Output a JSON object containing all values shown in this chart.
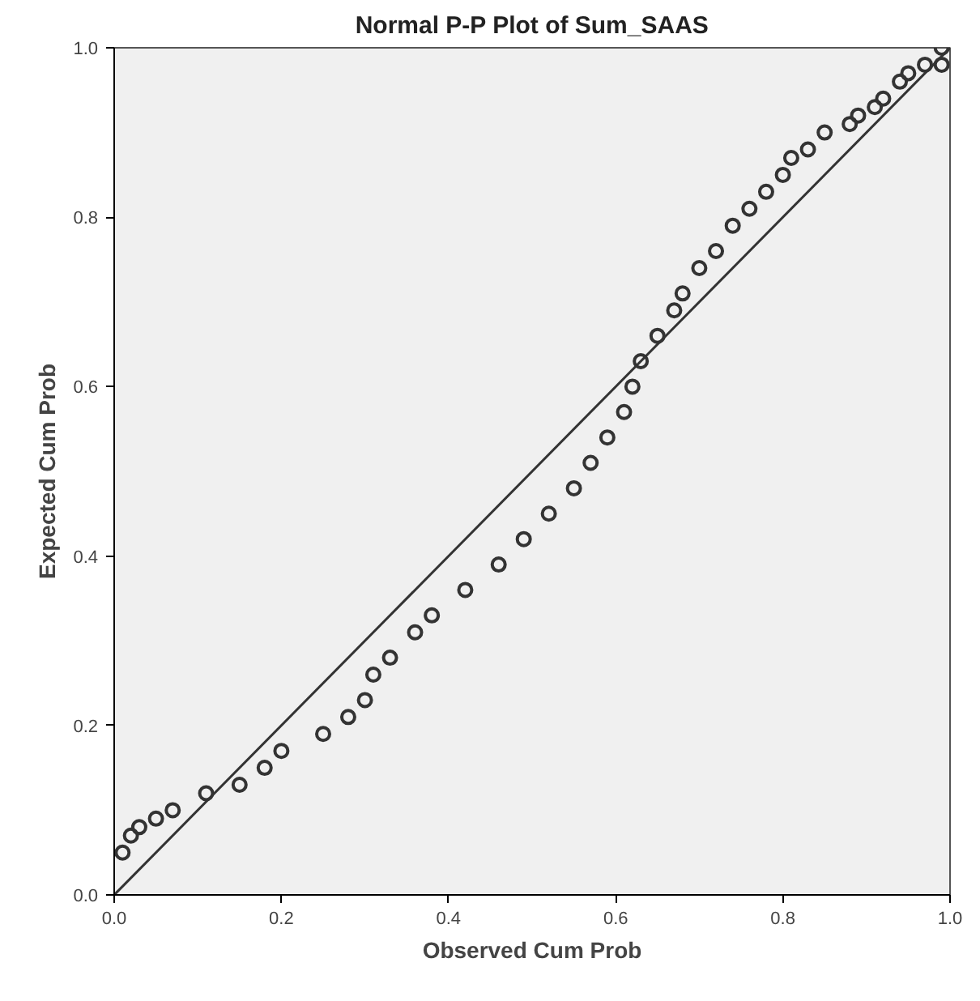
{
  "chart_data": {
    "type": "scatter",
    "title": "Normal P-P Plot of Sum_SAAS",
    "xlabel": "Observed Cum Prob",
    "ylabel": "Expected Cum Prob",
    "xlim": [
      0,
      1
    ],
    "ylim": [
      0,
      1
    ],
    "xticks": [
      {
        "value": 0,
        "label": "0.0"
      },
      {
        "value": 0.2,
        "label": "0.2"
      },
      {
        "value": 0.4,
        "label": "0.4"
      },
      {
        "value": 0.6,
        "label": "0.6"
      },
      {
        "value": 0.8,
        "label": "0.8"
      },
      {
        "value": 1,
        "label": "1.0"
      }
    ],
    "yticks": [
      {
        "value": 0,
        "label": "0.0"
      },
      {
        "value": 0.2,
        "label": "0.2"
      },
      {
        "value": 0.4,
        "label": "0.4"
      },
      {
        "value": 0.6,
        "label": "0.6"
      },
      {
        "value": 0.8,
        "label": "0.8"
      },
      {
        "value": 1,
        "label": "1.0"
      }
    ],
    "grid": false,
    "series": [
      {
        "marker": "circle",
        "color": "#333333",
        "x": [
          0.01,
          0.02,
          0.03,
          0.05,
          0.07,
          0.11,
          0.15,
          0.18,
          0.2,
          0.25,
          0.28,
          0.3,
          0.31,
          0.33,
          0.36,
          0.38,
          0.42,
          0.46,
          0.49,
          0.52,
          0.55,
          0.57,
          0.59,
          0.61,
          0.62,
          0.63,
          0.65,
          0.67,
          0.68,
          0.7,
          0.72,
          0.74,
          0.76,
          0.78,
          0.8,
          0.81,
          0.83,
          0.85,
          0.88,
          0.89,
          0.91,
          0.92,
          0.94,
          0.95,
          0.97,
          0.99,
          0.99
        ],
        "values": [
          0.05,
          0.07,
          0.08,
          0.09,
          0.1,
          0.12,
          0.13,
          0.15,
          0.17,
          0.19,
          0.21,
          0.23,
          0.26,
          0.28,
          0.31,
          0.33,
          0.36,
          0.39,
          0.42,
          0.45,
          0.48,
          0.51,
          0.54,
          0.57,
          0.6,
          0.63,
          0.66,
          0.69,
          0.71,
          0.74,
          0.76,
          0.79,
          0.81,
          0.83,
          0.85,
          0.87,
          0.88,
          0.9,
          0.91,
          0.92,
          0.93,
          0.94,
          0.96,
          0.97,
          0.98,
          0.98,
          1.0
        ]
      },
      {
        "type": "line",
        "color": "#333333",
        "x": [
          0,
          1
        ],
        "values": [
          0,
          1
        ],
        "line_style": "solid",
        "marker": "none"
      }
    ]
  }
}
